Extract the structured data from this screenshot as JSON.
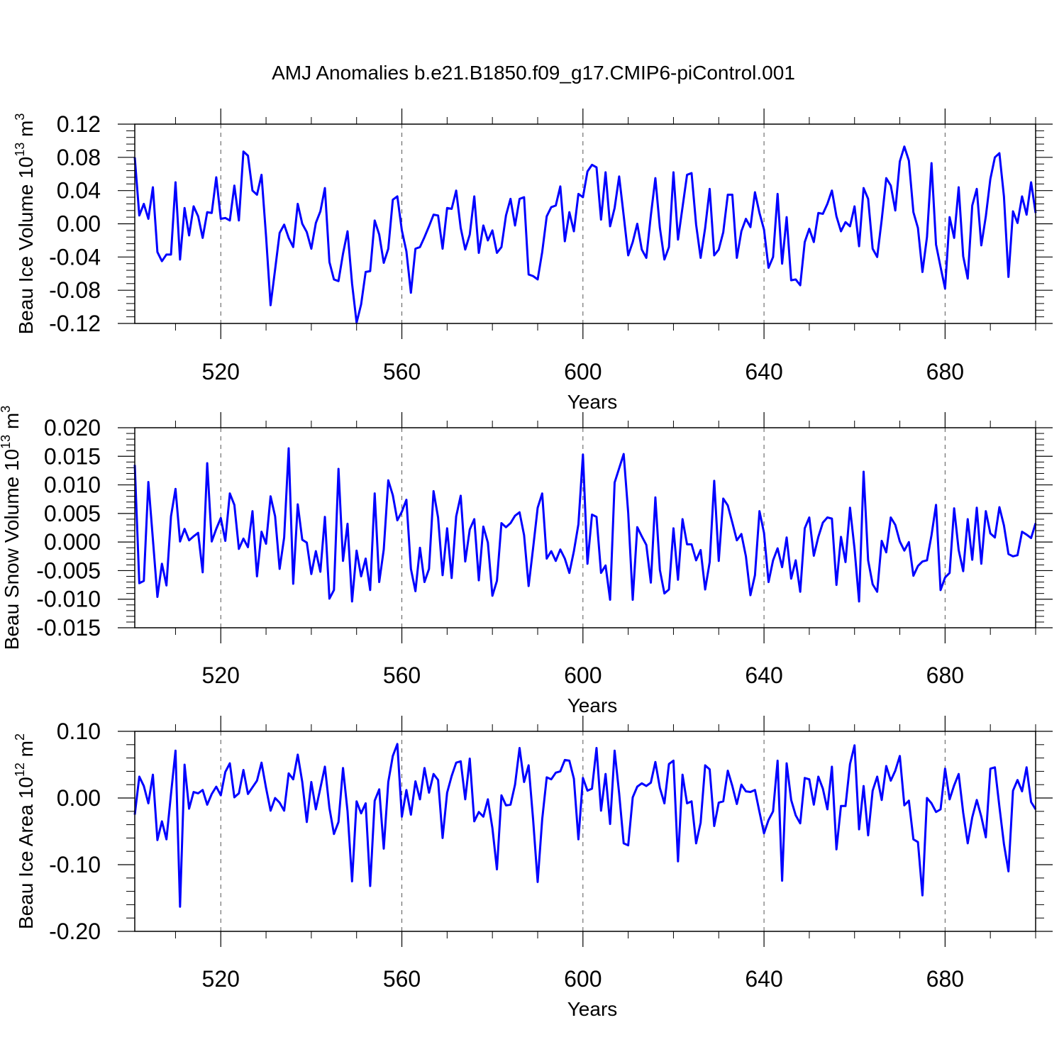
{
  "figure_title": "AMJ Anomalies b.e21.B1850.f09_g17.CMIP6-piControl.001",
  "line_color": "#0000ff",
  "chart_data": [
    {
      "type": "line",
      "title": "AMJ Anomalies b.e21.B1850.f09_g17.CMIP6-piControl.001",
      "ylabel_main": "Beau Ice Volume 10",
      "ylabel_exp": "13",
      "ylabel_unit": " m",
      "ylabel_unit_exp": "3",
      "xlabel": "Years",
      "xlim": [
        501,
        700
      ],
      "ylim": [
        -0.12,
        0.12
      ],
      "xticks": [
        520,
        560,
        600,
        640,
        680
      ],
      "xtick_labels": [
        "520",
        "560",
        "600",
        "640",
        "680"
      ],
      "yticks": [
        -0.12,
        -0.08,
        -0.04,
        0.0,
        0.04,
        0.08,
        0.12
      ],
      "ytick_labels": [
        "-0.12",
        "-0.08",
        "-0.04",
        "0.00",
        "0.04",
        "0.08",
        "0.12"
      ],
      "grid": "vertical dashed at major x ticks",
      "series": [
        {
          "name": "Beau Ice Volume",
          "x_start": 501,
          "x_step": 1,
          "values": [
            0.08,
            0.01,
            0.024,
            0.006,
            0.044,
            -0.034,
            -0.045,
            -0.037,
            -0.037,
            0.05,
            -0.043,
            0.019,
            -0.014,
            0.021,
            0.009,
            -0.017,
            0.014,
            0.013,
            0.056,
            0.006,
            0.007,
            0.004,
            0.046,
            0.004,
            0.087,
            0.082,
            0.04,
            0.035,
            0.059,
            -0.015,
            -0.098,
            -0.055,
            -0.011,
            -0.001,
            -0.017,
            -0.028,
            0.024,
            0.0,
            -0.01,
            -0.03,
            0.001,
            0.015,
            0.043,
            -0.046,
            -0.067,
            -0.069,
            -0.036,
            -0.009,
            -0.072,
            -0.119,
            -0.097,
            -0.058,
            -0.057,
            0.004,
            -0.013,
            -0.047,
            -0.03,
            0.029,
            0.033,
            -0.008,
            -0.033,
            -0.083,
            -0.03,
            -0.028,
            -0.016,
            -0.003,
            0.011,
            0.01,
            -0.03,
            0.019,
            0.018,
            0.04,
            -0.005,
            -0.031,
            -0.013,
            0.033,
            -0.035,
            -0.002,
            -0.02,
            -0.008,
            -0.035,
            -0.028,
            0.01,
            0.03,
            -0.002,
            0.03,
            0.032,
            -0.061,
            -0.063,
            -0.067,
            -0.034,
            0.009,
            0.02,
            0.022,
            0.045,
            -0.021,
            0.014,
            -0.009,
            0.036,
            0.032,
            0.063,
            0.071,
            0.068,
            0.005,
            0.062,
            -0.003,
            0.019,
            0.057,
            0.01,
            -0.038,
            -0.022,
            0.0,
            -0.031,
            -0.041,
            0.01,
            0.055,
            -0.005,
            -0.043,
            -0.028,
            0.062,
            -0.019,
            0.02,
            0.059,
            0.061,
            -0.001,
            -0.041,
            -0.005,
            0.042,
            -0.038,
            -0.031,
            -0.01,
            0.035,
            0.035,
            -0.041,
            -0.009,
            0.006,
            -0.004,
            0.038,
            0.013,
            -0.007,
            -0.053,
            -0.04,
            0.036,
            -0.048,
            0.008,
            -0.068,
            -0.067,
            -0.074,
            -0.022,
            -0.006,
            -0.022,
            0.013,
            0.012,
            0.024,
            0.04,
            0.009,
            -0.009,
            0.002,
            -0.003,
            0.021,
            -0.027,
            0.043,
            0.03,
            -0.03,
            -0.04,
            0.005,
            0.055,
            0.046,
            0.016,
            0.075,
            0.093,
            0.076,
            0.014,
            -0.005,
            -0.058,
            -0.016,
            0.073,
            -0.025,
            -0.052,
            -0.078,
            0.008,
            -0.017,
            0.044,
            -0.039,
            -0.066,
            0.022,
            0.042,
            -0.026,
            0.009,
            0.054,
            0.08,
            0.085,
            0.033,
            -0.064,
            0.015,
            0.001,
            0.033,
            0.011,
            0.05,
            0.013
          ]
        }
      ]
    },
    {
      "type": "line",
      "ylabel_main": "Beau Snow Volume 10",
      "ylabel_exp": "13",
      "ylabel_unit": " m",
      "ylabel_unit_exp": "3",
      "xlabel": "Years",
      "xlim": [
        501,
        700
      ],
      "ylim": [
        -0.015,
        0.02
      ],
      "xticks": [
        520,
        560,
        600,
        640,
        680
      ],
      "xtick_labels": [
        "520",
        "560",
        "600",
        "640",
        "680"
      ],
      "yticks": [
        -0.015,
        -0.01,
        -0.005,
        0.0,
        0.005,
        0.01,
        0.015,
        0.02
      ],
      "ytick_labels": [
        "-0.015",
        "-0.010",
        "-0.005",
        "0.000",
        "0.005",
        "0.010",
        "0.015",
        "0.020"
      ],
      "grid": "vertical dashed at major x ticks",
      "series": [
        {
          "name": "Beau Snow Volume",
          "x_start": 501,
          "x_step": 1,
          "values": [
            0.0135,
            -0.0072,
            -0.0068,
            0.0105,
            0.0005,
            -0.0096,
            -0.0038,
            -0.0076,
            0.0045,
            0.0093,
            0.0001,
            0.0023,
            0.0003,
            0.001,
            0.0016,
            -0.0053,
            0.0138,
            0.0001,
            0.0023,
            0.0042,
            0.0002,
            0.0085,
            0.0065,
            -0.0012,
            0.0006,
            -0.0009,
            0.0054,
            -0.006,
            0.0018,
            -0.0003,
            0.008,
            0.0045,
            -0.0047,
            0.0008,
            0.0164,
            -0.0073,
            0.0066,
            0.0004,
            -0.0001,
            -0.0056,
            -0.0016,
            -0.0052,
            0.0044,
            -0.0099,
            -0.0084,
            0.0128,
            -0.0033,
            0.0032,
            -0.0104,
            -0.0015,
            -0.006,
            -0.0029,
            -0.0084,
            0.0085,
            -0.007,
            -0.0013,
            0.0108,
            0.0082,
            0.0038,
            0.0053,
            0.0074,
            -0.0047,
            -0.0086,
            -0.001,
            -0.007,
            -0.0047,
            0.0089,
            0.0043,
            -0.0058,
            0.0024,
            -0.0063,
            0.0045,
            0.0081,
            -0.0034,
            0.0022,
            0.004,
            -0.0067,
            0.0027,
            -0.0001,
            -0.0094,
            -0.0068,
            0.0033,
            0.0026,
            0.0033,
            0.0046,
            0.0052,
            0.0012,
            -0.0077,
            -0.001,
            0.006,
            0.0085,
            -0.0029,
            -0.0016,
            -0.0033,
            -0.0013,
            -0.0029,
            -0.0054,
            -0.0016,
            0.0031,
            0.0153,
            -0.0038,
            0.0048,
            0.0044,
            -0.0054,
            -0.0041,
            -0.0101,
            0.0104,
            0.0129,
            0.0154,
            0.0051,
            -0.0101,
            0.0026,
            0.001,
            -0.0005,
            -0.0071,
            0.0078,
            -0.0049,
            -0.009,
            -0.0083,
            0.0024,
            -0.0066,
            0.004,
            -0.0004,
            -0.0004,
            -0.0032,
            -0.0014,
            -0.0083,
            -0.0035,
            0.0107,
            -0.0033,
            0.0076,
            0.0064,
            0.0034,
            0.0003,
            0.0014,
            -0.0025,
            -0.0093,
            -0.0058,
            0.0054,
            0.0016,
            -0.007,
            -0.0032,
            -0.0011,
            -0.0044,
            0.0008,
            -0.0064,
            -0.0032,
            -0.0087,
            0.0024,
            0.0043,
            -0.0024,
            0.0009,
            0.0034,
            0.0043,
            0.0041,
            -0.0075,
            0.0009,
            -0.0035,
            0.006,
            -0.0012,
            -0.0104,
            0.0123,
            -0.0032,
            -0.0074,
            -0.0087,
            0.0002,
            -0.0018,
            0.0043,
            0.003,
            0.0001,
            -0.0015,
            0.0,
            -0.0059,
            -0.0042,
            -0.0034,
            -0.0032,
            0.0012,
            0.0065,
            -0.0084,
            -0.0062,
            -0.0054,
            0.0059,
            -0.0014,
            -0.0051,
            0.004,
            -0.0031,
            0.006,
            -0.0038,
            0.0054,
            0.0015,
            0.0008,
            0.0061,
            0.0029,
            -0.0021,
            -0.0025,
            -0.0023,
            0.0018,
            0.0013,
            0.0007,
            0.0033
          ]
        }
      ]
    },
    {
      "type": "line",
      "ylabel_main": "Beau Ice Area 10",
      "ylabel_exp": "12",
      "ylabel_unit": " m",
      "ylabel_unit_exp": "2",
      "xlabel": "Years",
      "xlim": [
        501,
        700
      ],
      "ylim": [
        -0.2,
        0.1
      ],
      "xticks": [
        520,
        560,
        600,
        640,
        680
      ],
      "xtick_labels": [
        "520",
        "560",
        "600",
        "640",
        "680"
      ],
      "yticks": [
        -0.2,
        -0.1,
        0.0,
        0.1
      ],
      "ytick_labels": [
        "-0.20",
        "-0.10",
        "0.00",
        "0.10"
      ],
      "grid": "vertical dashed at major x ticks",
      "series": [
        {
          "name": "Beau Ice Area",
          "x_start": 501,
          "x_step": 1,
          "values": [
            -0.025,
            0.032,
            0.018,
            -0.008,
            0.035,
            -0.063,
            -0.035,
            -0.062,
            0.006,
            0.071,
            -0.163,
            0.05,
            -0.016,
            0.009,
            0.007,
            0.012,
            -0.01,
            0.006,
            0.017,
            0.004,
            0.039,
            0.052,
            0.001,
            0.007,
            0.042,
            0.006,
            0.016,
            0.026,
            0.053,
            0.015,
            -0.019,
            0.0,
            -0.007,
            -0.019,
            0.037,
            0.028,
            0.065,
            0.024,
            -0.036,
            0.024,
            -0.017,
            0.015,
            0.047,
            -0.015,
            -0.054,
            -0.036,
            0.045,
            -0.02,
            -0.125,
            -0.005,
            -0.023,
            -0.008,
            -0.132,
            -0.004,
            0.013,
            -0.076,
            0.024,
            0.063,
            0.081,
            -0.028,
            0.012,
            -0.025,
            0.025,
            -0.002,
            0.045,
            0.008,
            0.036,
            0.027,
            -0.06,
            0.008,
            0.033,
            0.053,
            0.055,
            -0.002,
            0.059,
            -0.035,
            -0.021,
            -0.028,
            -0.002,
            -0.045,
            -0.107,
            0.004,
            -0.011,
            -0.01,
            0.02,
            0.075,
            0.024,
            0.049,
            -0.033,
            -0.126,
            -0.032,
            0.031,
            0.028,
            0.038,
            0.04,
            0.057,
            0.056,
            0.029,
            -0.062,
            0.03,
            0.011,
            0.014,
            0.075,
            -0.019,
            0.036,
            -0.039,
            0.071,
            0.007,
            -0.068,
            -0.071,
            0.001,
            0.017,
            0.022,
            0.018,
            0.023,
            0.054,
            0.015,
            -0.008,
            0.051,
            0.056,
            -0.095,
            0.035,
            -0.008,
            -0.005,
            -0.068,
            -0.037,
            0.049,
            0.043,
            -0.042,
            -0.007,
            -0.005,
            0.041,
            0.018,
            -0.009,
            0.02,
            0.01,
            0.009,
            0.012,
            -0.021,
            -0.053,
            -0.033,
            -0.02,
            0.056,
            -0.124,
            0.052,
            -0.003,
            -0.026,
            -0.038,
            0.03,
            0.028,
            -0.01,
            0.032,
            0.014,
            -0.017,
            0.047,
            -0.077,
            -0.012,
            -0.012,
            0.051,
            0.079,
            -0.047,
            0.018,
            -0.056,
            0.011,
            0.032,
            -0.003,
            0.048,
            0.026,
            0.041,
            0.063,
            -0.011,
            -0.004,
            -0.062,
            -0.066,
            -0.146,
            0.0,
            -0.008,
            -0.021,
            -0.017,
            0.044,
            -0.002,
            0.019,
            0.036,
            -0.022,
            -0.068,
            -0.029,
            -0.003,
            -0.028,
            -0.059,
            0.044,
            0.046,
            -0.013,
            -0.069,
            -0.11,
            0.011,
            0.027,
            0.01,
            0.046,
            -0.006,
            -0.017
          ]
        }
      ]
    }
  ]
}
